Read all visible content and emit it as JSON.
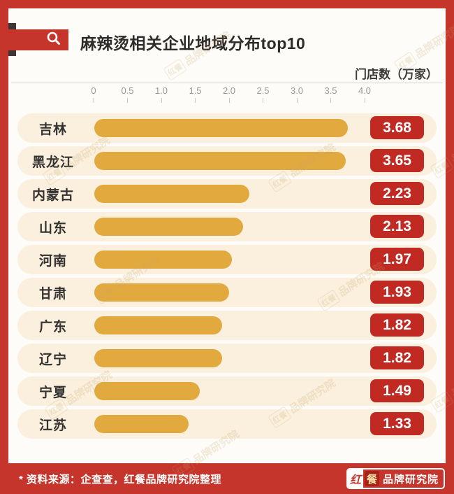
{
  "header": {
    "title": "麻辣烫相关企业地域分布top10"
  },
  "chart_data": {
    "type": "bar",
    "orientation": "horizontal",
    "title": "麻辣烫相关企业地域分布top10",
    "unit_label": "门店数（万家）",
    "categories": [
      "吉林",
      "黑龙江",
      "内蒙古",
      "山东",
      "河南",
      "甘肃",
      "广东",
      "辽宁",
      "宁夏",
      "江苏"
    ],
    "values": [
      3.68,
      3.65,
      2.23,
      2.13,
      1.97,
      1.93,
      1.82,
      1.82,
      1.49,
      1.33
    ],
    "x_ticks": [
      "0",
      "0.5",
      "1.0",
      "1.5",
      "2.0",
      "2.5",
      "3.0",
      "3.5",
      "4.0"
    ],
    "xlim": [
      0,
      4.0
    ],
    "grid": false,
    "legend": "none",
    "bar_color": "#e2aa3e",
    "value_badge_color": "#c02a23",
    "frame_color": "#c5352c"
  },
  "watermark": {
    "mark": "红餐",
    "text": "品牌研究院"
  },
  "footer": {
    "source_note": "* 资料来源：企查查，红餐品牌研究院整理",
    "logo": {
      "hong": "红",
      "can": "餐",
      "text": "品牌研究院"
    }
  }
}
